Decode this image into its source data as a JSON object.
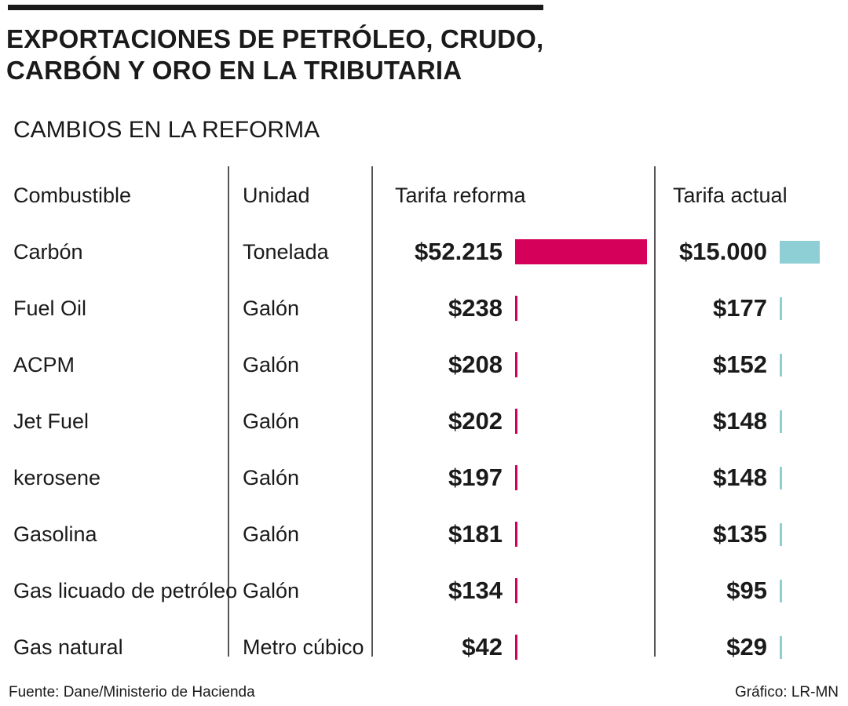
{
  "header": {
    "title_line1": "EXPORTACIONES DE PETRÓLEO, CRUDO,",
    "title_line2": "CARBÓN Y ORO EN LA TRIBUTARIA",
    "subtitle": "CAMBIOS EN LA REFORMA"
  },
  "columns": {
    "combustible": "Combustible",
    "unidad": "Unidad",
    "reforma": "Tarifa reforma",
    "actual": "Tarifa actual"
  },
  "colors": {
    "reforma": "#d4005a",
    "actual": "#8ecfd6",
    "text": "#1a1a1a"
  },
  "chart_data": {
    "type": "bar",
    "title": "EXPORTACIONES DE PETRÓLEO, CRUDO, CARBÓN Y ORO EN LA TRIBUTARIA",
    "subtitle": "CAMBIOS EN LA REFORMA",
    "categories": [
      "Carbón",
      "Fuel Oil",
      "ACPM",
      "Jet Fuel",
      "kerosene",
      "Gasolina",
      "Gas licuado de petróleo",
      "Gas natural"
    ],
    "units": [
      "Tonelada",
      "Galón",
      "Galón",
      "Galón",
      "Galón",
      "Galón",
      "Galón",
      "Metro cúbico"
    ],
    "series": [
      {
        "name": "Tarifa reforma",
        "values": [
          52215,
          238,
          208,
          202,
          197,
          181,
          134,
          42
        ],
        "labels": [
          "$52.215",
          "$238",
          "$208",
          "$202",
          "$197",
          "$181",
          "$134",
          "$42"
        ]
      },
      {
        "name": "Tarifa actual",
        "values": [
          15000,
          177,
          152,
          148,
          148,
          135,
          95,
          29
        ],
        "labels": [
          "$15.000",
          "$177",
          "$152",
          "$148",
          "$148",
          "$135",
          "$95",
          "$29"
        ]
      }
    ]
  },
  "footer": {
    "source": "Fuente: Dane/Ministerio de Hacienda",
    "credit": "Gráfico: LR-MN"
  }
}
